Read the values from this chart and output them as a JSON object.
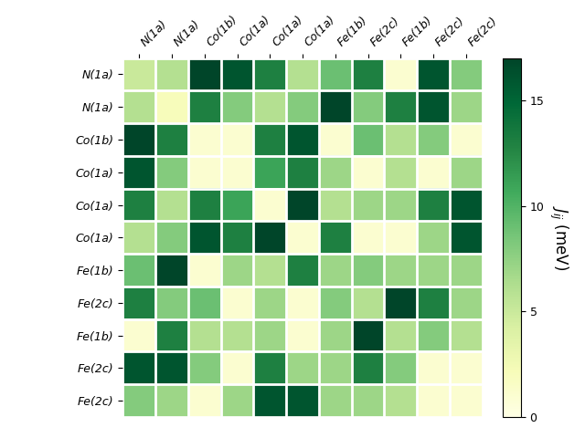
{
  "labels": [
    "N(1a)",
    "N(1a)",
    "Co(1b)",
    "Co(1a)",
    "Co(1a)",
    "Co(1a)",
    "Fe(1b)",
    "Fe(2c)",
    "Fe(1b)",
    "Fe(2c)",
    "Fe(2c)"
  ],
  "matrix": [
    [
      5,
      6,
      17,
      16,
      13,
      6,
      9,
      13,
      1,
      16,
      8
    ],
    [
      6,
      2,
      13,
      8,
      6,
      8,
      17,
      8,
      13,
      16,
      7
    ],
    [
      17,
      13,
      1,
      1,
      13,
      16,
      1,
      9,
      6,
      8,
      1
    ],
    [
      16,
      8,
      1,
      1,
      11,
      13,
      7,
      1,
      6,
      1,
      7
    ],
    [
      13,
      6,
      13,
      11,
      1,
      17,
      6,
      7,
      7,
      13,
      16
    ],
    [
      6,
      8,
      16,
      13,
      17,
      1,
      13,
      1,
      1,
      7,
      16
    ],
    [
      9,
      17,
      1,
      7,
      6,
      13,
      7,
      8,
      7,
      7,
      7
    ],
    [
      13,
      8,
      9,
      1,
      7,
      1,
      8,
      6,
      17,
      13,
      7
    ],
    [
      1,
      13,
      6,
      6,
      7,
      1,
      7,
      17,
      6,
      8,
      6
    ],
    [
      16,
      16,
      8,
      1,
      13,
      7,
      7,
      13,
      8,
      1,
      1
    ],
    [
      8,
      7,
      1,
      7,
      16,
      16,
      7,
      7,
      6,
      1,
      1
    ]
  ],
  "vmin": 0,
  "vmax": 17,
  "cmap": "YlGn",
  "colorbar_label": "$J_{ij}$ (meV)",
  "colorbar_ticks": [
    0,
    5,
    10,
    15
  ],
  "figsize": [
    6.4,
    4.8
  ],
  "dpi": 100
}
